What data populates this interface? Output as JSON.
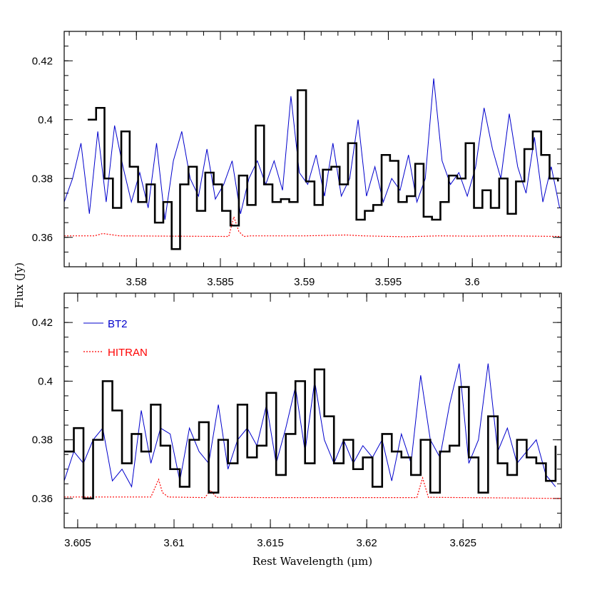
{
  "colors": {
    "obs": "#000000",
    "bt2": "#0000cc",
    "hitran": "#ff0000"
  },
  "ylabel": "Flux (Jy)",
  "xlabel": "Rest Wavelength (μm)",
  "legend": {
    "bt2": "BT2",
    "hitran": "HITRAN"
  },
  "chart_data": [
    {
      "type": "line",
      "xlim": [
        3.5757,
        3.6053
      ],
      "ylim": [
        0.35,
        0.43
      ],
      "xticks": [
        3.58,
        3.585,
        3.59,
        3.595,
        3.6
      ],
      "xtick_labels": [
        "3.58",
        "3.585",
        "3.59",
        "3.595",
        "3.6"
      ],
      "yticks": [
        0.36,
        0.38,
        0.4,
        0.42
      ],
      "ytick_labels": [
        "0.36",
        "0.38",
        "0.4",
        "0.42"
      ],
      "series": [
        {
          "name": "observed",
          "x": [
            3.5771,
            3.5776,
            3.5781,
            3.5786,
            3.5791,
            3.5796,
            3.5801,
            3.5806,
            3.5811,
            3.5816,
            3.5821,
            3.5826,
            3.5831,
            3.5836,
            3.5841,
            3.5846,
            3.5851,
            3.5856,
            3.5861,
            3.5866,
            3.5871,
            3.5876,
            3.5881,
            3.5886,
            3.5891,
            3.5896,
            3.5901,
            3.5906,
            3.5911,
            3.5916,
            3.5921,
            3.5926,
            3.5931,
            3.5936,
            3.5941,
            3.5946,
            3.5951,
            3.5956,
            3.5961,
            3.5966,
            3.5971,
            3.5976,
            3.5981,
            3.5986,
            3.5991,
            3.5996,
            3.6001,
            3.6006,
            3.6011,
            3.6016,
            3.6021,
            3.6026,
            3.6031,
            3.6036,
            3.6041,
            3.6046,
            3.6051
          ],
          "y": [
            0.4,
            0.404,
            0.38,
            0.37,
            0.396,
            0.384,
            0.372,
            0.378,
            0.365,
            0.372,
            0.356,
            0.378,
            0.384,
            0.369,
            0.382,
            0.378,
            0.369,
            0.364,
            0.381,
            0.371,
            0.398,
            0.378,
            0.372,
            0.373,
            0.372,
            0.41,
            0.379,
            0.371,
            0.383,
            0.384,
            0.378,
            0.392,
            0.366,
            0.369,
            0.371,
            0.388,
            0.386,
            0.372,
            0.374,
            0.385,
            0.367,
            0.366,
            0.372,
            0.381,
            0.38,
            0.392,
            0.37,
            0.376,
            0.37,
            0.38,
            0.368,
            0.379,
            0.39,
            0.396,
            0.388,
            0.38,
            0.379
          ]
        },
        {
          "name": "BT2",
          "x": [
            3.5757,
            3.5762,
            3.5767,
            3.5772,
            3.5777,
            3.5782,
            3.5787,
            3.5792,
            3.5797,
            3.5802,
            3.5807,
            3.5812,
            3.5817,
            3.5822,
            3.5827,
            3.5832,
            3.5837,
            3.5842,
            3.5847,
            3.5852,
            3.5857,
            3.5862,
            3.5867,
            3.5872,
            3.5877,
            3.5882,
            3.5887,
            3.5892,
            3.5897,
            3.5902,
            3.5907,
            3.5912,
            3.5917,
            3.5922,
            3.5927,
            3.5932,
            3.5937,
            3.5942,
            3.5947,
            3.5952,
            3.5957,
            3.5962,
            3.5967,
            3.5972,
            3.5977,
            3.5982,
            3.5987,
            3.5992,
            3.5997,
            3.6002,
            3.6007,
            3.6012,
            3.6017,
            3.6022,
            3.6027,
            3.6032,
            3.6037,
            3.6042,
            3.6047,
            3.6052
          ],
          "y": [
            0.372,
            0.38,
            0.392,
            0.368,
            0.396,
            0.372,
            0.398,
            0.384,
            0.372,
            0.382,
            0.37,
            0.392,
            0.366,
            0.386,
            0.396,
            0.38,
            0.374,
            0.39,
            0.373,
            0.378,
            0.386,
            0.368,
            0.38,
            0.386,
            0.378,
            0.386,
            0.376,
            0.408,
            0.382,
            0.378,
            0.388,
            0.374,
            0.392,
            0.374,
            0.38,
            0.4,
            0.374,
            0.384,
            0.372,
            0.38,
            0.376,
            0.388,
            0.372,
            0.38,
            0.414,
            0.386,
            0.378,
            0.382,
            0.374,
            0.384,
            0.404,
            0.39,
            0.38,
            0.402,
            0.384,
            0.375,
            0.394,
            0.372,
            0.384,
            0.37
          ]
        },
        {
          "name": "HITRAN",
          "x": [
            3.5757,
            3.5775,
            3.578,
            3.579,
            3.5855,
            3.5858,
            3.5861,
            3.5864,
            3.5868,
            3.59,
            3.5925,
            3.5935,
            3.596,
            3.598,
            3.6,
            3.602,
            3.6053
          ],
          "y": [
            0.3605,
            0.3605,
            0.3613,
            0.3605,
            0.3603,
            0.367,
            0.362,
            0.3603,
            0.3605,
            0.3605,
            0.3608,
            0.3605,
            0.3602,
            0.3605,
            0.3604,
            0.3605,
            0.3603
          ]
        }
      ]
    },
    {
      "type": "line",
      "xlim": [
        3.6043,
        3.6301
      ],
      "ylim": [
        0.35,
        0.43
      ],
      "xticks": [
        3.605,
        3.61,
        3.615,
        3.62,
        3.625
      ],
      "xtick_labels": [
        "3.605",
        "3.61",
        "3.615",
        "3.62",
        "3.625"
      ],
      "yticks": [
        0.36,
        0.38,
        0.4,
        0.42
      ],
      "ytick_labels": [
        "0.36",
        "0.38",
        "0.4",
        "0.42"
      ],
      "series": [
        {
          "name": "observed",
          "x": [
            3.6043,
            3.6048,
            3.6053,
            3.6058,
            3.6063,
            3.6068,
            3.6073,
            3.6078,
            3.6083,
            3.6088,
            3.6093,
            3.6098,
            3.6103,
            3.6108,
            3.6113,
            3.6118,
            3.6123,
            3.6128,
            3.6133,
            3.6138,
            3.6143,
            3.6148,
            3.6153,
            3.6158,
            3.6163,
            3.6168,
            3.6173,
            3.6178,
            3.6183,
            3.6188,
            3.6193,
            3.6198,
            3.6203,
            3.6208,
            3.6213,
            3.6218,
            3.6223,
            3.6228,
            3.6233,
            3.6238,
            3.6243,
            3.6248,
            3.6253,
            3.6258,
            3.6263,
            3.6268,
            3.6273,
            3.6278,
            3.6283,
            3.6288,
            3.6293,
            3.6298
          ],
          "y": [
            0.376,
            0.384,
            0.36,
            0.38,
            0.4,
            0.39,
            0.372,
            0.382,
            0.376,
            0.392,
            0.378,
            0.37,
            0.364,
            0.38,
            0.386,
            0.362,
            0.38,
            0.372,
            0.392,
            0.374,
            0.378,
            0.396,
            0.368,
            0.382,
            0.4,
            0.372,
            0.404,
            0.388,
            0.372,
            0.38,
            0.37,
            0.374,
            0.364,
            0.382,
            0.376,
            0.374,
            0.368,
            0.38,
            0.362,
            0.376,
            0.378,
            0.398,
            0.374,
            0.362,
            0.388,
            0.372,
            0.368,
            0.38,
            0.374,
            0.372,
            0.366,
            0.378
          ]
        },
        {
          "name": "BT2",
          "x": [
            3.6043,
            3.6048,
            3.6053,
            3.6058,
            3.6063,
            3.6068,
            3.6073,
            3.6078,
            3.6083,
            3.6088,
            3.6093,
            3.6098,
            3.6103,
            3.6108,
            3.6113,
            3.6118,
            3.6123,
            3.6128,
            3.6133,
            3.6138,
            3.6143,
            3.6148,
            3.6153,
            3.6158,
            3.6163,
            3.6168,
            3.6173,
            3.6178,
            3.6183,
            3.6188,
            3.6193,
            3.6198,
            3.6203,
            3.6208,
            3.6213,
            3.6218,
            3.6223,
            3.6228,
            3.6233,
            3.6238,
            3.6243,
            3.6248,
            3.6253,
            3.6258,
            3.6263,
            3.6268,
            3.6273,
            3.6278,
            3.6283,
            3.6288,
            3.6293,
            3.6298
          ],
          "y": [
            0.366,
            0.376,
            0.372,
            0.38,
            0.384,
            0.366,
            0.37,
            0.364,
            0.39,
            0.372,
            0.384,
            0.382,
            0.366,
            0.384,
            0.376,
            0.372,
            0.392,
            0.37,
            0.38,
            0.384,
            0.378,
            0.392,
            0.372,
            0.384,
            0.398,
            0.376,
            0.4,
            0.38,
            0.372,
            0.38,
            0.372,
            0.378,
            0.374,
            0.38,
            0.366,
            0.382,
            0.372,
            0.402,
            0.38,
            0.374,
            0.392,
            0.406,
            0.372,
            0.38,
            0.406,
            0.376,
            0.384,
            0.372,
            0.376,
            0.38,
            0.368,
            0.364
          ]
        },
        {
          "name": "HITRAN",
          "x": [
            3.6043,
            3.6088,
            3.6092,
            3.6094,
            3.6097,
            3.6116,
            3.6119,
            3.6122,
            3.615,
            3.62,
            3.6226,
            3.6229,
            3.6232,
            3.627,
            3.6301
          ],
          "y": [
            0.3605,
            0.3605,
            0.3665,
            0.362,
            0.3605,
            0.3603,
            0.3628,
            0.3604,
            0.3603,
            0.3603,
            0.3603,
            0.367,
            0.3604,
            0.3602,
            0.36
          ]
        }
      ]
    }
  ]
}
